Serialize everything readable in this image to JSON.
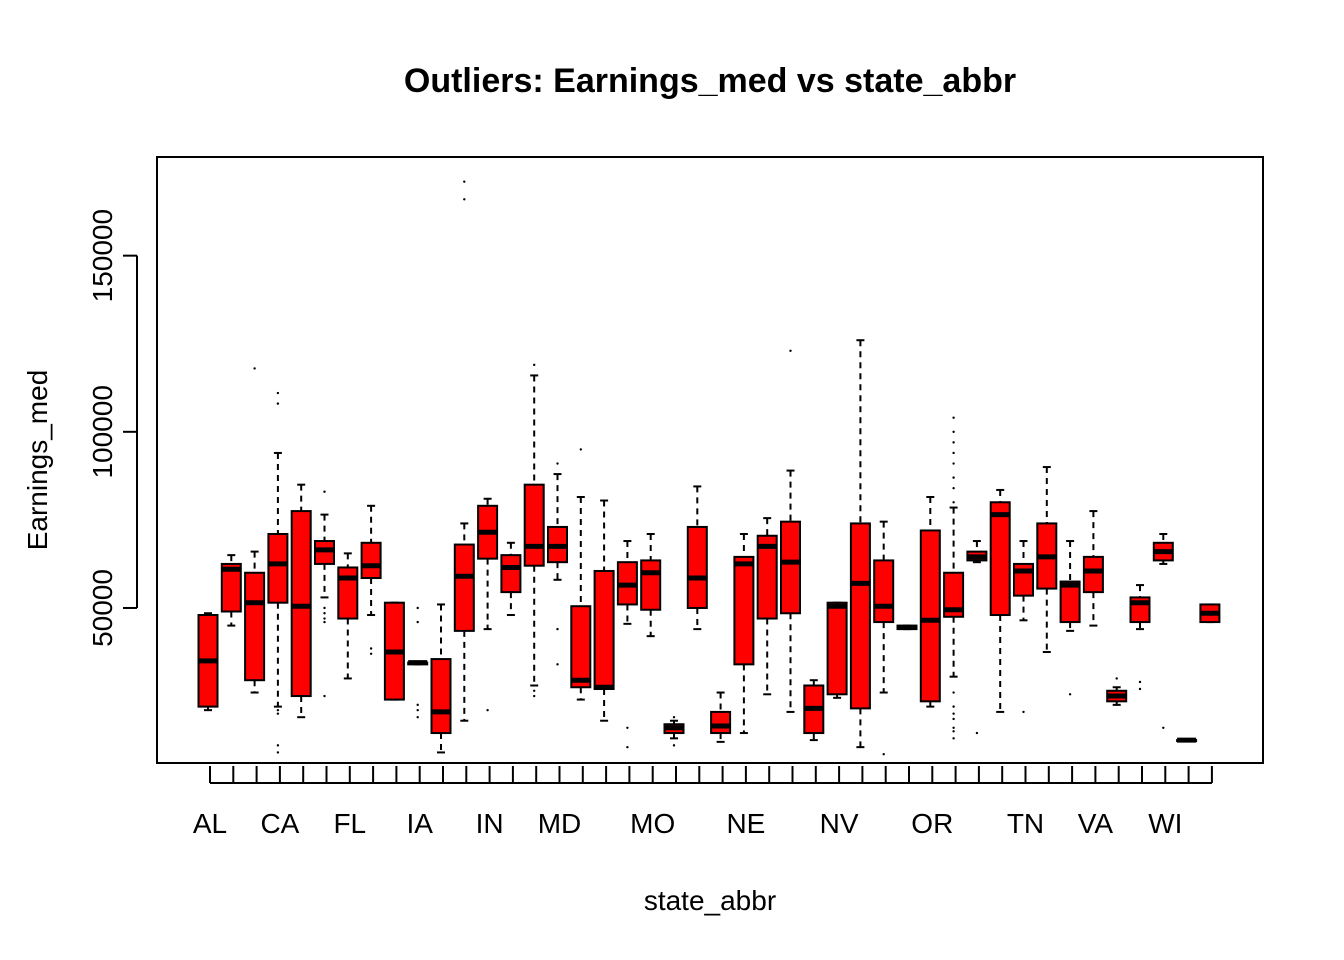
{
  "chart_data": {
    "type": "box",
    "title": "Outliers: Earnings_med vs state_abbr",
    "xlabel": "state_abbr",
    "ylabel": "Earnings_med",
    "ylim": [
      6000,
      178000
    ],
    "y_ticks": [
      50000,
      100000,
      150000
    ],
    "y_tick_labels": [
      "50000",
      "100000",
      "150000"
    ],
    "box_color": "#ff0000",
    "categories": [
      "AL",
      "",
      "",
      "CA",
      "",
      "",
      "FL",
      "",
      "",
      "IA",
      "",
      "",
      "IN",
      "",
      "",
      "MD",
      "",
      "",
      "",
      "MO",
      "",
      "",
      "",
      "NE",
      "",
      "",
      "",
      "NV",
      "",
      "",
      "",
      "OR",
      "",
      "",
      "",
      "TN",
      "",
      "",
      "VA",
      "",
      "",
      "WI",
      "",
      ""
    ],
    "boxes": [
      {
        "low": 21000,
        "q1": 22000,
        "med": 35000,
        "q3": 48000,
        "high": 48500,
        "outliers": []
      },
      {
        "low": 45000,
        "q1": 49000,
        "med": 61000,
        "q3": 62500,
        "high": 65000,
        "outliers": []
      },
      {
        "low": 26000,
        "q1": 29500,
        "med": 51500,
        "q3": 60000,
        "high": 66000,
        "outliers": [
          118000
        ]
      },
      {
        "low": 22000,
        "q1": 51500,
        "med": 62500,
        "q3": 71000,
        "high": 94000,
        "outliers": [
          9000,
          11000,
          20000,
          21000,
          108000,
          111000
        ]
      },
      {
        "low": 19000,
        "q1": 25000,
        "med": 50500,
        "q3": 77500,
        "high": 85000,
        "outliers": []
      },
      {
        "low": 53000,
        "q1": 62500,
        "med": 66500,
        "q3": 69000,
        "high": 76500,
        "outliers": [
          25000,
          46000,
          47000,
          48500,
          50000,
          83000
        ]
      },
      {
        "low": 30000,
        "q1": 47000,
        "med": 58500,
        "q3": 61500,
        "high": 65500,
        "outliers": []
      },
      {
        "low": 48000,
        "q1": 58500,
        "med": 62000,
        "q3": 68500,
        "high": 79000,
        "outliers": [
          37000,
          38500
        ]
      },
      {
        "low": 24000,
        "q1": 24000,
        "med": 37500,
        "q3": 51500,
        "high": 51500,
        "outliers": []
      },
      {
        "low": 34000,
        "q1": 34000,
        "med": 34500,
        "q3": 34500,
        "high": 34500,
        "outliers": [
          19000,
          21000,
          22500,
          46000,
          50000
        ]
      },
      {
        "low": 9000,
        "q1": 14500,
        "med": 20500,
        "q3": 35500,
        "high": 51000,
        "outliers": []
      },
      {
        "low": 18000,
        "q1": 43500,
        "med": 59000,
        "q3": 68000,
        "high": 74000,
        "outliers": [
          166000,
          171000
        ]
      },
      {
        "low": 44000,
        "q1": 64000,
        "med": 71500,
        "q3": 79000,
        "high": 81000,
        "outliers": [
          21000
        ]
      },
      {
        "low": 48000,
        "q1": 54500,
        "med": 61500,
        "q3": 65000,
        "high": 68500,
        "outliers": []
      },
      {
        "low": 28000,
        "q1": 62000,
        "med": 67500,
        "q3": 85000,
        "high": 116000,
        "outliers": [
          25000,
          26500,
          119000
        ]
      },
      {
        "low": 58000,
        "q1": 63000,
        "med": 67500,
        "q3": 73000,
        "high": 88000,
        "outliers": [
          34000,
          44000,
          91000
        ]
      },
      {
        "low": 24000,
        "q1": 27500,
        "med": 29500,
        "q3": 50500,
        "high": 81500,
        "outliers": [
          95000
        ]
      },
      {
        "low": 18000,
        "q1": 27000,
        "med": 27500,
        "q3": 60500,
        "high": 80500,
        "outliers": []
      },
      {
        "low": 45500,
        "q1": 51000,
        "med": 56500,
        "q3": 63000,
        "high": 69000,
        "outliers": [
          10500,
          16000
        ]
      },
      {
        "low": 42000,
        "q1": 49500,
        "med": 60000,
        "q3": 63500,
        "high": 71000,
        "outliers": []
      },
      {
        "low": 13000,
        "q1": 14500,
        "med": 16000,
        "q3": 17000,
        "high": 18000,
        "outliers": [
          11000,
          19000
        ]
      },
      {
        "low": 44000,
        "q1": 50000,
        "med": 58500,
        "q3": 73000,
        "high": 84500,
        "outliers": []
      },
      {
        "low": 12000,
        "q1": 14500,
        "med": 16500,
        "q3": 20500,
        "high": 26000,
        "outliers": []
      },
      {
        "low": 14500,
        "q1": 34000,
        "med": 62500,
        "q3": 64500,
        "high": 71000,
        "outliers": []
      },
      {
        "low": 25500,
        "q1": 47000,
        "med": 67500,
        "q3": 70500,
        "high": 75500,
        "outliers": []
      },
      {
        "low": 20500,
        "q1": 48500,
        "med": 63000,
        "q3": 74500,
        "high": 89000,
        "outliers": [
          123000
        ]
      },
      {
        "low": 12500,
        "q1": 14500,
        "med": 21500,
        "q3": 28000,
        "high": 29500,
        "outliers": []
      },
      {
        "low": 24500,
        "q1": 25500,
        "med": 50500,
        "q3": 51500,
        "high": 51500,
        "outliers": [
          51000
        ]
      },
      {
        "low": 10500,
        "q1": 21500,
        "med": 57000,
        "q3": 74000,
        "high": 126000,
        "outliers": []
      },
      {
        "low": 26000,
        "q1": 46000,
        "med": 50500,
        "q3": 63500,
        "high": 74500,
        "outliers": [
          8500
        ]
      },
      {
        "low": 44000,
        "q1": 44000,
        "med": 44500,
        "q3": 45000,
        "high": 45000,
        "outliers": []
      },
      {
        "low": 22000,
        "q1": 23500,
        "med": 46500,
        "q3": 72000,
        "high": 81500,
        "outliers": []
      },
      {
        "low": 30500,
        "q1": 47500,
        "med": 49500,
        "q3": 60000,
        "high": 78500,
        "outliers": [
          13000,
          15000,
          16000,
          18500,
          20000,
          22000,
          26000,
          80000,
          84000,
          87000,
          91000,
          94000,
          97000,
          100000,
          104000
        ]
      },
      {
        "low": 63000,
        "q1": 63500,
        "med": 64500,
        "q3": 66000,
        "high": 69000,
        "outliers": [
          14500
        ]
      },
      {
        "low": 20500,
        "q1": 48000,
        "med": 76500,
        "q3": 80000,
        "high": 83500,
        "outliers": []
      },
      {
        "low": 46500,
        "q1": 53500,
        "med": 60500,
        "q3": 62500,
        "high": 69000,
        "outliers": [
          20500
        ]
      },
      {
        "low": 37500,
        "q1": 55500,
        "med": 64500,
        "q3": 74000,
        "high": 90000,
        "outliers": []
      },
      {
        "low": 43500,
        "q1": 46000,
        "med": 56500,
        "q3": 57500,
        "high": 69000,
        "outliers": [
          25500
        ]
      },
      {
        "low": 45000,
        "q1": 54500,
        "med": 60500,
        "q3": 64500,
        "high": 77500,
        "outliers": []
      },
      {
        "low": 22500,
        "q1": 23500,
        "med": 25000,
        "q3": 26500,
        "high": 27500,
        "outliers": [
          30000
        ]
      },
      {
        "low": 44000,
        "q1": 46000,
        "med": 51500,
        "q3": 53000,
        "high": 56500,
        "outliers": [
          27000,
          29000
        ]
      },
      {
        "low": 62500,
        "q1": 63500,
        "med": 66000,
        "q3": 68500,
        "high": 71000,
        "outliers": [
          16000
        ]
      },
      {
        "low": 12500,
        "q1": 12500,
        "med": 12500,
        "q3": 12500,
        "high": 12500,
        "outliers": []
      },
      {
        "low": 46000,
        "q1": 46000,
        "med": 48500,
        "q3": 51000,
        "high": 51000,
        "outliers": []
      }
    ]
  }
}
